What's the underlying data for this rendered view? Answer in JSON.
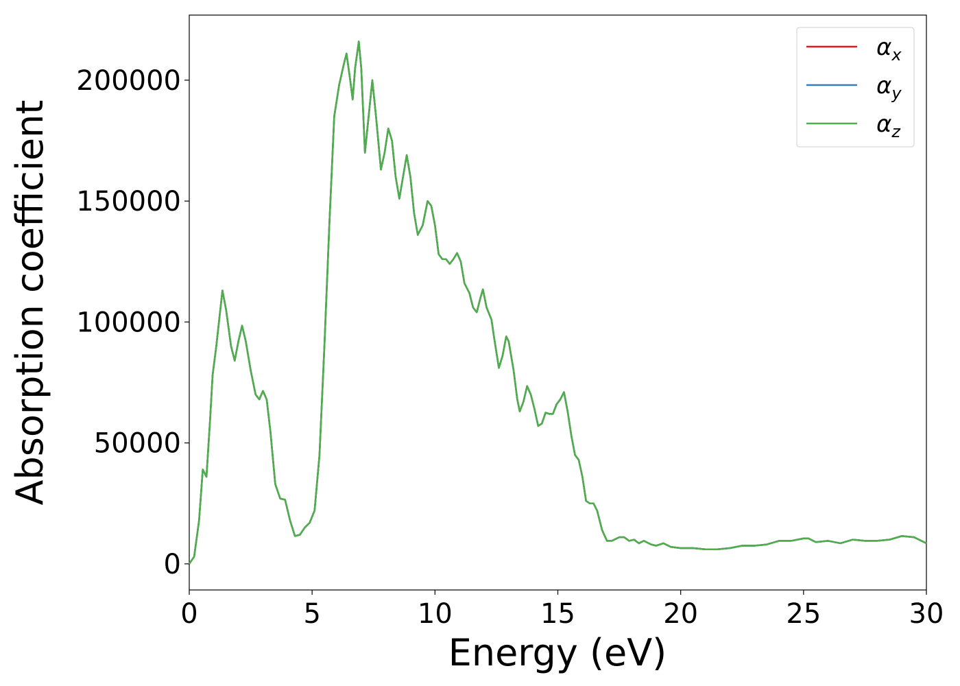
{
  "chart_data": {
    "type": "line",
    "xlabel": "Energy (eV)",
    "ylabel": "Absorption coefficient",
    "x": [
      0,
      0.2,
      0.4,
      0.55,
      0.7,
      0.85,
      0.95,
      1.1,
      1.35,
      1.5,
      1.7,
      1.85,
      2.0,
      2.15,
      2.3,
      2.5,
      2.7,
      2.85,
      3.0,
      3.15,
      3.3,
      3.5,
      3.7,
      3.9,
      4.1,
      4.3,
      4.5,
      4.7,
      4.9,
      5.1,
      5.3,
      5.5,
      5.7,
      5.9,
      6.1,
      6.3,
      6.4,
      6.55,
      6.65,
      6.75,
      6.9,
      7.0,
      7.15,
      7.3,
      7.45,
      7.6,
      7.8,
      7.95,
      8.1,
      8.25,
      8.4,
      8.55,
      8.7,
      8.85,
      9.0,
      9.15,
      9.3,
      9.5,
      9.7,
      9.85,
      10.0,
      10.15,
      10.3,
      10.45,
      10.6,
      10.75,
      10.9,
      11.05,
      11.2,
      11.4,
      11.55,
      11.7,
      11.85,
      11.95,
      12.1,
      12.3,
      12.4,
      12.6,
      12.75,
      12.9,
      13.0,
      13.2,
      13.35,
      13.45,
      13.6,
      13.75,
      13.9,
      14.05,
      14.2,
      14.35,
      14.5,
      14.65,
      14.8,
      14.95,
      15.1,
      15.25,
      15.4,
      15.55,
      15.7,
      15.85,
      16.0,
      16.15,
      16.3,
      16.45,
      16.6,
      16.8,
      17.0,
      17.2,
      17.5,
      17.7,
      17.9,
      18.1,
      18.3,
      18.5,
      18.8,
      19.0,
      19.3,
      19.6,
      20.0,
      20.5,
      21.0,
      21.5,
      22.0,
      22.5,
      23.0,
      23.5,
      24.0,
      24.5,
      25.0,
      25.2,
      25.5,
      26.0,
      26.5,
      27.0,
      27.5,
      28.0,
      28.5,
      29.0,
      29.5,
      30.0
    ],
    "series": [
      {
        "name": "αx",
        "color": "#e41a1c",
        "values": [
          0,
          3000,
          18000,
          39000,
          36000,
          60000,
          78000,
          90000,
          113000,
          105000,
          90000,
          84000,
          92000,
          98500,
          92000,
          80000,
          70000,
          68000,
          71500,
          68000,
          55000,
          33000,
          27000,
          26500,
          18000,
          11500,
          12000,
          15000,
          17000,
          22000,
          45000,
          90000,
          140000,
          185000,
          198000,
          207000,
          211000,
          200000,
          192000,
          205000,
          216000,
          205000,
          170000,
          185000,
          200000,
          185000,
          163000,
          170000,
          180000,
          175000,
          160000,
          151000,
          160000,
          169000,
          160000,
          145000,
          136000,
          140000,
          150000,
          148000,
          140000,
          128000,
          126000,
          126000,
          124000,
          126000,
          128500,
          125000,
          116000,
          112000,
          106000,
          104000,
          110000,
          113500,
          106000,
          101000,
          94000,
          81000,
          86000,
          94000,
          92000,
          80000,
          68000,
          63000,
          67000,
          73500,
          70000,
          64000,
          57000,
          58000,
          62500,
          62000,
          62000,
          66000,
          68000,
          71000,
          63000,
          53000,
          45000,
          43000,
          36000,
          26000,
          25000,
          25000,
          22000,
          14000,
          9500,
          9500,
          11000,
          11000,
          9500,
          10000,
          8500,
          9500,
          8000,
          7500,
          8500,
          7000,
          6500,
          6500,
          6000,
          6000,
          6500,
          7500,
          7500,
          8000,
          9500,
          9500,
          10500,
          10500,
          9000,
          9500,
          8500,
          10000,
          9500,
          9500,
          10000,
          11500,
          11000,
          8500
        ]
      },
      {
        "name": "αy",
        "color": "#377eb8",
        "values": [
          0,
          3000,
          18000,
          39000,
          36000,
          60000,
          78000,
          90000,
          113000,
          105000,
          90000,
          84000,
          92000,
          98500,
          92000,
          80000,
          70000,
          68000,
          71500,
          68000,
          55000,
          33000,
          27000,
          26500,
          18000,
          11500,
          12000,
          15000,
          17000,
          22000,
          45000,
          90000,
          140000,
          185000,
          198000,
          207000,
          211000,
          200000,
          192000,
          205000,
          216000,
          205000,
          170000,
          185000,
          200000,
          185000,
          163000,
          170000,
          180000,
          175000,
          160000,
          151000,
          160000,
          169000,
          160000,
          145000,
          136000,
          140000,
          150000,
          148000,
          140000,
          128000,
          126000,
          126000,
          124000,
          126000,
          128500,
          125000,
          116000,
          112000,
          106000,
          104000,
          110000,
          113500,
          106000,
          101000,
          94000,
          81000,
          86000,
          94000,
          92000,
          80000,
          68000,
          63000,
          67000,
          73500,
          70000,
          64000,
          57000,
          58000,
          62500,
          62000,
          62000,
          66000,
          68000,
          71000,
          63000,
          53000,
          45000,
          43000,
          36000,
          26000,
          25000,
          25000,
          22000,
          14000,
          9500,
          9500,
          11000,
          11000,
          9500,
          10000,
          8500,
          9500,
          8000,
          7500,
          8500,
          7000,
          6500,
          6500,
          6000,
          6000,
          6500,
          7500,
          7500,
          8000,
          9500,
          9500,
          10500,
          10500,
          9000,
          9500,
          8500,
          10000,
          9500,
          9500,
          10000,
          11500,
          11000,
          8500
        ]
      },
      {
        "name": "αz",
        "color": "#4daf4a",
        "values": [
          0,
          3000,
          18000,
          39000,
          36000,
          60000,
          78000,
          90000,
          113000,
          105000,
          90000,
          84000,
          92000,
          98500,
          92000,
          80000,
          70000,
          68000,
          71500,
          68000,
          55000,
          33000,
          27000,
          26500,
          18000,
          11500,
          12000,
          15000,
          17000,
          22000,
          45000,
          90000,
          140000,
          185000,
          198000,
          207000,
          211000,
          200000,
          192000,
          205000,
          216000,
          205000,
          170000,
          185000,
          200000,
          185000,
          163000,
          170000,
          180000,
          175000,
          160000,
          151000,
          160000,
          169000,
          160000,
          145000,
          136000,
          140000,
          150000,
          148000,
          140000,
          128000,
          126000,
          126000,
          124000,
          126000,
          128500,
          125000,
          116000,
          112000,
          106000,
          104000,
          110000,
          113500,
          106000,
          101000,
          94000,
          81000,
          86000,
          94000,
          92000,
          80000,
          68000,
          63000,
          67000,
          73500,
          70000,
          64000,
          57000,
          58000,
          62500,
          62000,
          62000,
          66000,
          68000,
          71000,
          63000,
          53000,
          45000,
          43000,
          36000,
          26000,
          25000,
          25000,
          22000,
          14000,
          9500,
          9500,
          11000,
          11000,
          9500,
          10000,
          8500,
          9500,
          8000,
          7500,
          8500,
          7000,
          6500,
          6500,
          6000,
          6000,
          6500,
          7500,
          7500,
          8000,
          9500,
          9500,
          10500,
          10500,
          9000,
          9500,
          8500,
          10000,
          9500,
          9500,
          10000,
          11500,
          11000,
          8500
        ]
      }
    ],
    "xlim": [
      0,
      30
    ],
    "xticks": [
      0,
      5,
      10,
      15,
      20,
      25,
      30
    ],
    "ylim": [
      -10800,
      226900
    ],
    "yticks": [
      0,
      50000,
      100000,
      150000,
      200000
    ],
    "grid": false,
    "legend": "upper right"
  }
}
